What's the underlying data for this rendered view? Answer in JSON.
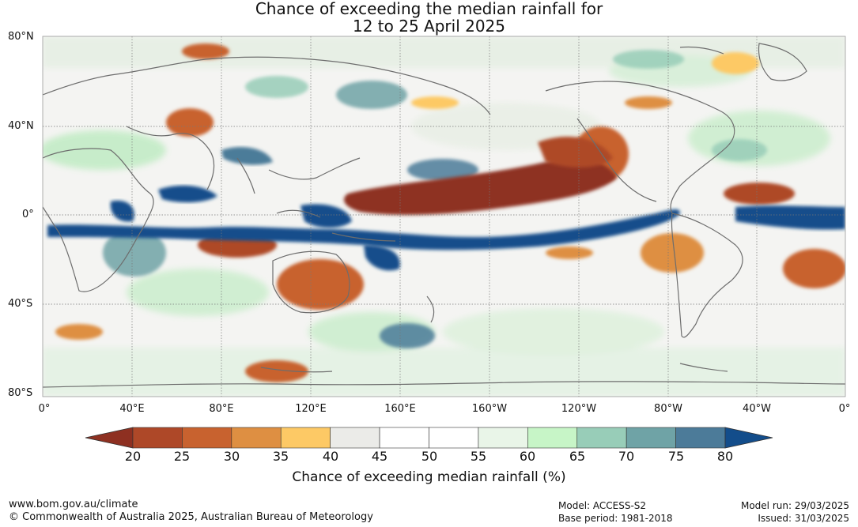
{
  "header": {
    "title_line1": "Chance of exceeding the median rainfall for",
    "title_line2": "12 to 25 April 2025"
  },
  "map": {
    "latitude_labels": [
      "80°N",
      "40°N",
      "0°",
      "40°S",
      "80°S"
    ],
    "longitude_labels": [
      "0°",
      "40°E",
      "80°E",
      "120°E",
      "160°E",
      "160°W",
      "120°W",
      "80°W",
      "40°W",
      "0°"
    ],
    "gridlines": true
  },
  "colorbar": {
    "title": "Chance of exceeding median rainfall (%)",
    "ticks": [
      "20",
      "25",
      "30",
      "35",
      "40",
      "45",
      "50",
      "55",
      "60",
      "65",
      "70",
      "75",
      "80"
    ],
    "colors": [
      "#8e3021",
      "#ae4828",
      "#c8622f",
      "#de8f42",
      "#fdc965",
      "#ebebe8",
      "#ffffff",
      "#ffffff",
      "#e9f5e8",
      "#c7f5c7",
      "#98cdb8",
      "#6fa3a6",
      "#4c7b99",
      "#134d8b"
    ],
    "extend": "both"
  },
  "footer": {
    "website": "www.bom.gov.au/climate",
    "copyright": "© Commonwealth of Australia 2025, Australian Bureau of Meteorology",
    "model": "Model: ACCESS-S2",
    "base_period": "Base period: 1981-2018",
    "model_run": "Model run: 29/03/2025",
    "issued": "Issued: 31/03/2025"
  }
}
